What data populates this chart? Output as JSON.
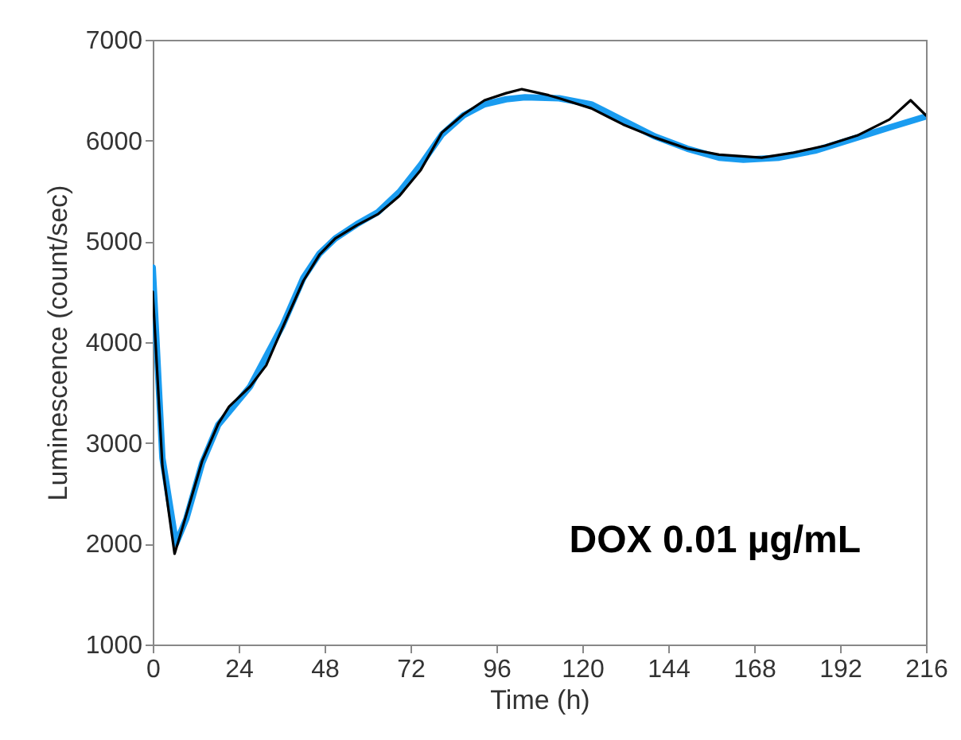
{
  "chart_data": {
    "type": "line",
    "xlabel": "Time (h)",
    "ylabel": "Luminescence (count/sec)",
    "annotations": [
      "DOX 0.01 µg/mL"
    ],
    "xlim": [
      0,
      216
    ],
    "xticks": [
      0,
      24,
      48,
      72,
      96,
      120,
      144,
      168,
      192,
      216
    ],
    "ylim": [
      1000,
      7000
    ],
    "yticks": [
      1000,
      2000,
      3000,
      4000,
      5000,
      6000,
      7000
    ],
    "grid": false,
    "line_style": "solid",
    "series": [
      {
        "color": "#1a9cf0",
        "x": [
          0,
          2.7,
          6.5,
          9.4,
          13.8,
          18.3,
          27.2,
          36.2,
          42.1,
          46.6,
          51,
          57,
          62.9,
          68.9,
          74.9,
          80.8,
          86.8,
          92.7,
          98.7,
          104,
          113.5,
          122.5,
          131.4,
          140.3,
          149.3,
          158.2,
          165,
          175,
          185,
          196.8,
          205.8,
          216
        ],
        "values": [
          4740,
          2850,
          2000,
          2250,
          2800,
          3180,
          3560,
          4160,
          4640,
          4880,
          5030,
          5170,
          5290,
          5490,
          5760,
          6060,
          6250,
          6360,
          6410,
          6430,
          6420,
          6360,
          6200,
          6040,
          5920,
          5830,
          5810,
          5830,
          5900,
          6030,
          6130,
          6240
        ]
      },
      {
        "color": "#000000",
        "x": [
          0,
          2.7,
          6.1,
          9.4,
          13.8,
          18.3,
          21.3,
          27.2,
          31.7,
          36.2,
          42.1,
          46.6,
          51,
          57,
          62.9,
          68.9,
          74.9,
          80.8,
          86.8,
          92.7,
          98.7,
          103.1,
          110.6,
          113.5,
          122.5,
          131.4,
          140.3,
          149.3,
          158.2,
          170.1,
          179,
          187.9,
          196.8,
          205.8,
          211.7,
          216
        ],
        "values": [
          4500,
          2770,
          1900,
          2290,
          2820,
          3190,
          3360,
          3560,
          3770,
          4140,
          4610,
          4870,
          5030,
          5160,
          5270,
          5450,
          5710,
          6080,
          6260,
          6400,
          6470,
          6510,
          6450,
          6420,
          6320,
          6160,
          6030,
          5920,
          5860,
          5830,
          5880,
          5950,
          6050,
          6210,
          6400,
          6250
        ]
      }
    ]
  }
}
